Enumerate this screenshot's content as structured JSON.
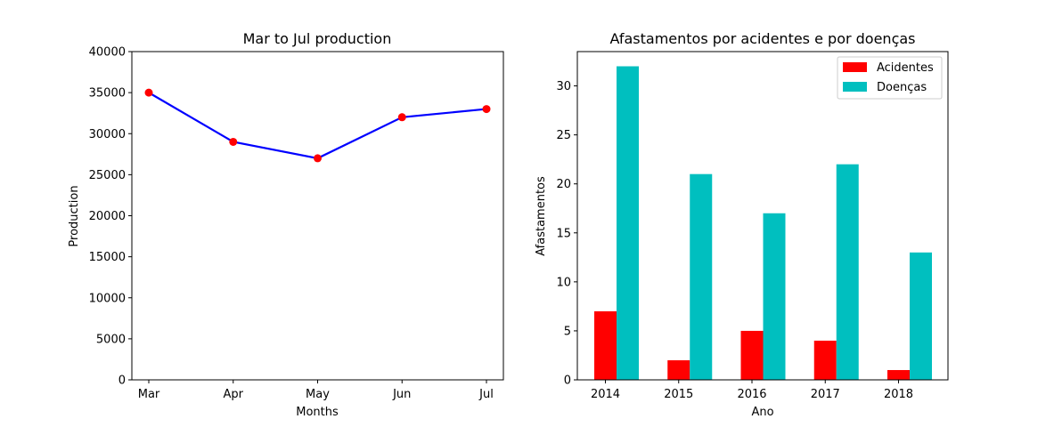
{
  "chart_data": [
    {
      "type": "line",
      "title": "Mar to Jul production",
      "xlabel": "Months",
      "ylabel": "Production",
      "categories": [
        "Mar",
        "Apr",
        "May",
        "Jun",
        "Jul"
      ],
      "values": [
        35000,
        29000,
        27000,
        32000,
        33000
      ],
      "ylim": [
        0,
        40000
      ],
      "yticks": [
        "0",
        "5000",
        "10000",
        "15000",
        "20000",
        "25000",
        "30000",
        "35000",
        "40000"
      ],
      "line_color": "#0000ff",
      "marker_color": "#ff0000",
      "grid": false
    },
    {
      "type": "bar",
      "title": "Afastamentos por acidentes e por doenças",
      "xlabel": "Ano",
      "ylabel": "Afastamentos",
      "categories": [
        "2014",
        "2015",
        "2016",
        "2017",
        "2018"
      ],
      "series": [
        {
          "name": "Acidentes",
          "values": [
            7,
            2,
            5,
            4,
            1
          ],
          "color": "#ff0000"
        },
        {
          "name": "Doenças",
          "values": [
            32,
            21,
            17,
            22,
            13
          ],
          "color": "#00bfbf"
        }
      ],
      "ylim": [
        0,
        33.5
      ],
      "yticks": [
        "0",
        "5",
        "10",
        "15",
        "20",
        "25",
        "30"
      ],
      "legend_position": "top-right",
      "grid": false
    }
  ]
}
